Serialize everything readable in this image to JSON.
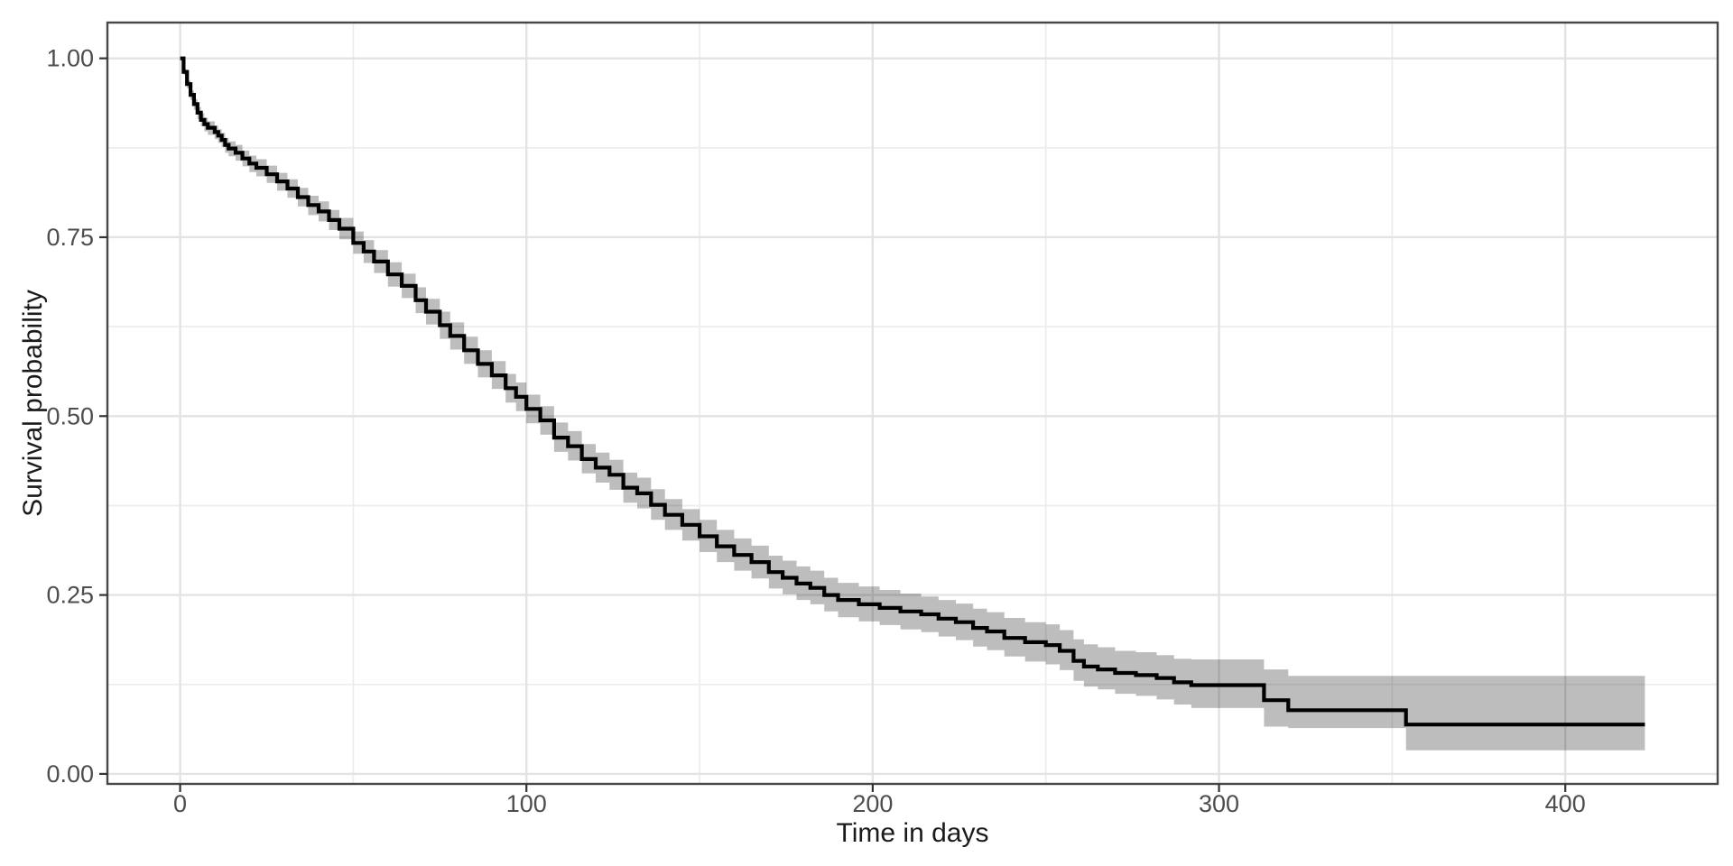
{
  "chart": {
    "xlabel": "Time in days",
    "ylabel": "Survival probability"
  },
  "chart_data": {
    "type": "line",
    "subtype": "kaplan-meier-step-curve-with-confidence-band",
    "title": "",
    "xlabel": "Time in days",
    "ylabel": "Survival probability",
    "xlim": [
      -21,
      444
    ],
    "ylim": [
      -0.014,
      1.05
    ],
    "x_major_ticks": [
      0,
      100,
      200,
      300,
      400
    ],
    "x_tick_labels": [
      "0",
      "100",
      "200",
      "300",
      "400"
    ],
    "x_minor_gridlines": [
      50,
      150,
      250,
      350
    ],
    "y_major_ticks": [
      0.0,
      0.25,
      0.5,
      0.75,
      1.0
    ],
    "y_tick_labels": [
      "0.00",
      "0.25",
      "0.50",
      "0.75",
      "1.00"
    ],
    "y_minor_gridlines": [
      0.125,
      0.375,
      0.625,
      0.875
    ],
    "grid": "major-and-minor",
    "legend": "none",
    "colors": {
      "line": "#000000",
      "band": "rgba(0,0,0,0.26)",
      "grid_major": "#e3e3e3",
      "grid_minor": "#ededed",
      "panel_border": "#474747",
      "tick_mark": "#333333",
      "tick_label": "#4d4d4d",
      "axis_title": "#1a1a1a",
      "background": "#ffffff"
    },
    "series": [
      {
        "name": "Survival estimate",
        "point_format": [
          "time_days",
          "survival",
          "ci_lower",
          "ci_upper"
        ],
        "points": [
          [
            0,
            1.0,
            1.0,
            1.0
          ],
          [
            1,
            0.981,
            0.977,
            0.985
          ],
          [
            2,
            0.964,
            0.958,
            0.969
          ],
          [
            3,
            0.949,
            0.942,
            0.955
          ],
          [
            4,
            0.936,
            0.928,
            0.943
          ],
          [
            5,
            0.924,
            0.915,
            0.932
          ],
          [
            6,
            0.914,
            0.905,
            0.923
          ],
          [
            7,
            0.908,
            0.898,
            0.917
          ],
          [
            8,
            0.903,
            0.893,
            0.912
          ],
          [
            10,
            0.897,
            0.887,
            0.906
          ],
          [
            11,
            0.892,
            0.882,
            0.901
          ],
          [
            12,
            0.886,
            0.876,
            0.896
          ],
          [
            13,
            0.879,
            0.868,
            0.889
          ],
          [
            14,
            0.874,
            0.863,
            0.884
          ],
          [
            16,
            0.868,
            0.857,
            0.879
          ],
          [
            18,
            0.86,
            0.849,
            0.871
          ],
          [
            20,
            0.853,
            0.841,
            0.864
          ],
          [
            22,
            0.847,
            0.835,
            0.859
          ],
          [
            25,
            0.838,
            0.826,
            0.85
          ],
          [
            28,
            0.828,
            0.815,
            0.84
          ],
          [
            31,
            0.818,
            0.805,
            0.831
          ],
          [
            34,
            0.806,
            0.793,
            0.819
          ],
          [
            37,
            0.795,
            0.781,
            0.808
          ],
          [
            40,
            0.786,
            0.772,
            0.8
          ],
          [
            43,
            0.774,
            0.76,
            0.788
          ],
          [
            46,
            0.762,
            0.747,
            0.777
          ],
          [
            50,
            0.742,
            0.727,
            0.758
          ],
          [
            53,
            0.73,
            0.714,
            0.746
          ],
          [
            56,
            0.716,
            0.7,
            0.732
          ],
          [
            60,
            0.698,
            0.681,
            0.715
          ],
          [
            64,
            0.682,
            0.665,
            0.699
          ],
          [
            68,
            0.662,
            0.644,
            0.68
          ],
          [
            71,
            0.646,
            0.628,
            0.664
          ],
          [
            75,
            0.627,
            0.608,
            0.646
          ],
          [
            78,
            0.612,
            0.593,
            0.631
          ],
          [
            82,
            0.592,
            0.573,
            0.611
          ],
          [
            86,
            0.573,
            0.554,
            0.592
          ],
          [
            90,
            0.557,
            0.538,
            0.577
          ],
          [
            94,
            0.539,
            0.519,
            0.559
          ],
          [
            97,
            0.527,
            0.507,
            0.547
          ],
          [
            100,
            0.51,
            0.49,
            0.53
          ],
          [
            104,
            0.494,
            0.474,
            0.514
          ],
          [
            108,
            0.47,
            0.45,
            0.491
          ],
          [
            112,
            0.458,
            0.438,
            0.479
          ],
          [
            116,
            0.44,
            0.42,
            0.461
          ],
          [
            120,
            0.428,
            0.407,
            0.449
          ],
          [
            124,
            0.418,
            0.397,
            0.439
          ],
          [
            128,
            0.4,
            0.379,
            0.421
          ],
          [
            132,
            0.392,
            0.371,
            0.414
          ],
          [
            136,
            0.376,
            0.355,
            0.398
          ],
          [
            140,
            0.362,
            0.341,
            0.384
          ],
          [
            145,
            0.348,
            0.326,
            0.37
          ],
          [
            150,
            0.332,
            0.31,
            0.355
          ],
          [
            155,
            0.318,
            0.296,
            0.341
          ],
          [
            160,
            0.306,
            0.284,
            0.329
          ],
          [
            165,
            0.296,
            0.273,
            0.319
          ],
          [
            170,
            0.282,
            0.259,
            0.305
          ],
          [
            174,
            0.274,
            0.251,
            0.298
          ],
          [
            178,
            0.266,
            0.243,
            0.29
          ],
          [
            182,
            0.26,
            0.237,
            0.284
          ],
          [
            186,
            0.25,
            0.227,
            0.274
          ],
          [
            190,
            0.243,
            0.219,
            0.267
          ],
          [
            196,
            0.237,
            0.213,
            0.262
          ],
          [
            202,
            0.232,
            0.208,
            0.257
          ],
          [
            208,
            0.227,
            0.202,
            0.252
          ],
          [
            214,
            0.223,
            0.198,
            0.248
          ],
          [
            219,
            0.217,
            0.192,
            0.243
          ],
          [
            224,
            0.212,
            0.187,
            0.238
          ],
          [
            229,
            0.204,
            0.178,
            0.231
          ],
          [
            233,
            0.199,
            0.173,
            0.226
          ],
          [
            238,
            0.19,
            0.164,
            0.218
          ],
          [
            244,
            0.184,
            0.157,
            0.212
          ],
          [
            250,
            0.18,
            0.153,
            0.209
          ],
          [
            254,
            0.172,
            0.145,
            0.201
          ],
          [
            258,
            0.158,
            0.13,
            0.188
          ],
          [
            261,
            0.15,
            0.122,
            0.181
          ],
          [
            265,
            0.146,
            0.118,
            0.177
          ],
          [
            270,
            0.141,
            0.112,
            0.172
          ],
          [
            276,
            0.138,
            0.109,
            0.17
          ],
          [
            282,
            0.134,
            0.104,
            0.166
          ],
          [
            287,
            0.128,
            0.097,
            0.161
          ],
          [
            292,
            0.124,
            0.092,
            0.16
          ],
          [
            313,
            0.103,
            0.066,
            0.146
          ],
          [
            320,
            0.089,
            0.064,
            0.137
          ],
          [
            354,
            0.069,
            0.033,
            0.137
          ],
          [
            423,
            0.069,
            0.033,
            0.137
          ]
        ]
      }
    ]
  }
}
